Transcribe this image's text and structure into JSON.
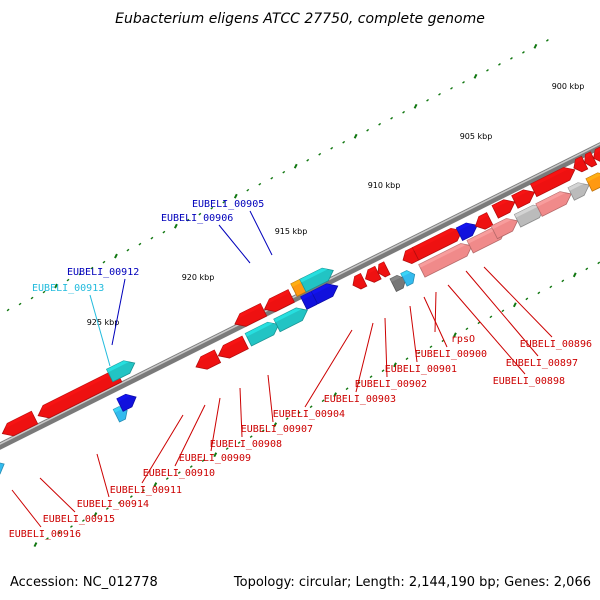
{
  "title": "Eubacterium eligens ATCC 27750, complete genome",
  "footer": {
    "accession": "Accession: NC_012778",
    "summary": "Topology: circular; Length: 2,144,190 bp; Genes: 2,066"
  },
  "colors": {
    "red": "#ee1111",
    "pink": "#f08a8a",
    "cyan": "#22c4c4",
    "lightblue": "#33bbee",
    "blue": "#1111dd",
    "orange": "#ff9911",
    "gray": "#777777",
    "lightgray": "#bbbbbb",
    "tick": "#117711",
    "label_red": "#cc0000",
    "label_blue": "#0000bb",
    "label_cyan": "#22bbdd"
  },
  "scale": [
    {
      "label": "900 kbp"
    },
    {
      "label": "905 kbp"
    },
    {
      "label": "910 kbp"
    },
    {
      "label": "915 kbp"
    },
    {
      "label": "920 kbp"
    },
    {
      "label": "925 kbp"
    }
  ],
  "labels": [
    {
      "id": "EUBELI_00896",
      "text": "EUBELI_00896",
      "color": "label_red"
    },
    {
      "id": "EUBELI_00897",
      "text": "EUBELI_00897",
      "color": "label_red"
    },
    {
      "id": "EUBELI_00898",
      "text": "EUBELI_00898",
      "color": "label_red"
    },
    {
      "id": "rpsO",
      "text": "rpsO",
      "color": "label_red"
    },
    {
      "id": "EUBELI_00900",
      "text": "EUBELI_00900",
      "color": "label_red"
    },
    {
      "id": "EUBELI_00901",
      "text": "EUBELI_00901",
      "color": "label_red"
    },
    {
      "id": "EUBELI_00902",
      "text": "EUBELI_00902",
      "color": "label_red"
    },
    {
      "id": "EUBELI_00903",
      "text": "EUBELI_00903",
      "color": "label_red"
    },
    {
      "id": "EUBELI_00904",
      "text": "EUBELI_00904",
      "color": "label_red"
    },
    {
      "id": "EUBELI_00905",
      "text": "EUBELI_00905",
      "color": "label_blue"
    },
    {
      "id": "EUBELI_00906",
      "text": "EUBELI_00906",
      "color": "label_blue"
    },
    {
      "id": "EUBELI_00907",
      "text": "EUBELI_00907",
      "color": "label_red"
    },
    {
      "id": "EUBELI_00908",
      "text": "EUBELI_00908",
      "color": "label_red"
    },
    {
      "id": "EUBELI_00909",
      "text": "EUBELI_00909",
      "color": "label_red"
    },
    {
      "id": "EUBELI_00910",
      "text": "EUBELI_00910",
      "color": "label_red"
    },
    {
      "id": "EUBELI_00911",
      "text": "EUBELI_00911",
      "color": "label_red"
    },
    {
      "id": "EUBELI_00912",
      "text": "EUBELI_00912",
      "color": "label_blue"
    },
    {
      "id": "EUBELI_00913",
      "text": "EUBELI_00913",
      "color": "label_cyan"
    },
    {
      "id": "EUBELI_00914",
      "text": "EUBELI_00914",
      "color": "label_red"
    },
    {
      "id": "EUBELI_00915",
      "text": "EUBELI_00915",
      "color": "label_red"
    },
    {
      "id": "EUBELI_00916",
      "text": "EUBELI_00916",
      "color": "label_red"
    }
  ]
}
